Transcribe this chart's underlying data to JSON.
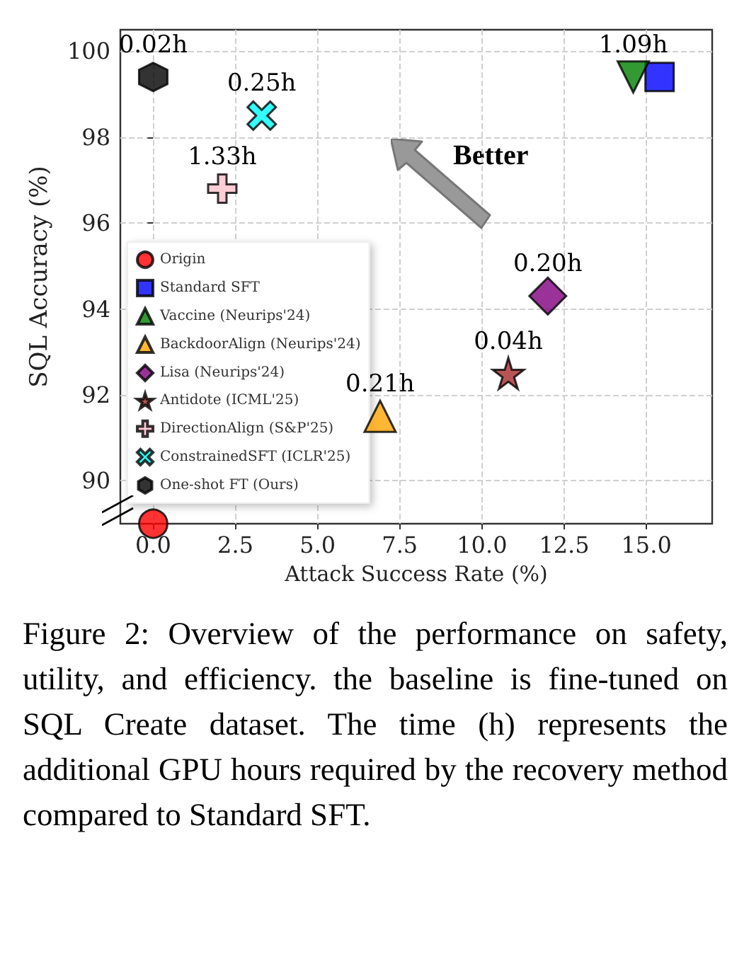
{
  "chart_data": {
    "type": "scatter",
    "xlabel": "Attack Success Rate (%)",
    "ylabel": "SQL Accuracy (%)",
    "xlim": [
      -1,
      17
    ],
    "ylim": [
      89,
      100.5
    ],
    "xticks": [
      {
        "value": 0,
        "label": "0.0"
      },
      {
        "value": 2.5,
        "label": "2.5"
      },
      {
        "value": 5,
        "label": "5.0"
      },
      {
        "value": 7.5,
        "label": "7.5"
      },
      {
        "value": 10,
        "label": "10.0"
      },
      {
        "value": 12.5,
        "label": "12.5"
      },
      {
        "value": 15,
        "label": "15.0"
      }
    ],
    "yticks": [
      90,
      92,
      94,
      96,
      98,
      100
    ],
    "grid": true,
    "legend": "left",
    "series": [
      {
        "name": "Origin",
        "color": "#ff0000",
        "marker": "circle",
        "x": [
          0
        ],
        "values": [
          89
        ]
      },
      {
        "name": "Standard SFT",
        "color": "#0000ff",
        "marker": "square",
        "x": [
          15.4
        ],
        "values": [
          99.4
        ]
      },
      {
        "name": "Vaccine (Neurips'24)",
        "color": "#007f00",
        "marker": "triangle_down",
        "x": [
          14.6
        ],
        "values": [
          99.4
        ]
      },
      {
        "name": "BackdoorAlign (Neurips'24)",
        "color": "#ffa500",
        "marker": "triangle",
        "x": [
          6.9
        ],
        "values": [
          91.5
        ]
      },
      {
        "name": "Lisa (Neurips'24)",
        "color": "#800080",
        "marker": "diamond",
        "x": [
          12.0
        ],
        "values": [
          94.3
        ]
      },
      {
        "name": "Antidote (ICML'25)",
        "color": "#a52a2a",
        "marker": "star",
        "x": [
          10.8
        ],
        "values": [
          92.5
        ]
      },
      {
        "name": "DirectionAlign (S&P'25)",
        "color": "#ffc0cb",
        "marker": "cross",
        "x": [
          2.1
        ],
        "values": [
          96.8
        ]
      },
      {
        "name": "ConstrainedSFT (ICLR'25)",
        "color": "#00ffff",
        "marker": "x",
        "x": [
          3.3
        ],
        "values": [
          98.5
        ]
      },
      {
        "name": "One-shot FT (Ours)",
        "color": "#000000",
        "x": [
          0
        ],
        "values": [
          99.4
        ]
      }
    ],
    "annotations": [
      "Better",
      {
        "text": "1.09h",
        "x": 14.6,
        "y": 99.4
      },
      {
        "text": "0.21h",
        "x": 6.9,
        "y": 91.5
      },
      {
        "text": "0.20h",
        "x": 12.0,
        "y": 94.3
      },
      {
        "text": "0.04h",
        "x": 10.8,
        "y": 92.5
      },
      {
        "text": "1.33h",
        "x": 2.1,
        "y": 96.8
      },
      {
        "text": "0.25h",
        "x": 3.3,
        "y": 98.5
      },
      {
        "text": "0.02h",
        "x": 0,
        "y": 99.4
      },
      "Figure 2: Overview of the performance on safety, utility, and efficiency. the baseline is fine-tuned on SQL Create dataset. The time (h) represents the additional GPU hours required by the recovery method compared to Standard SFT."
    ]
  }
}
